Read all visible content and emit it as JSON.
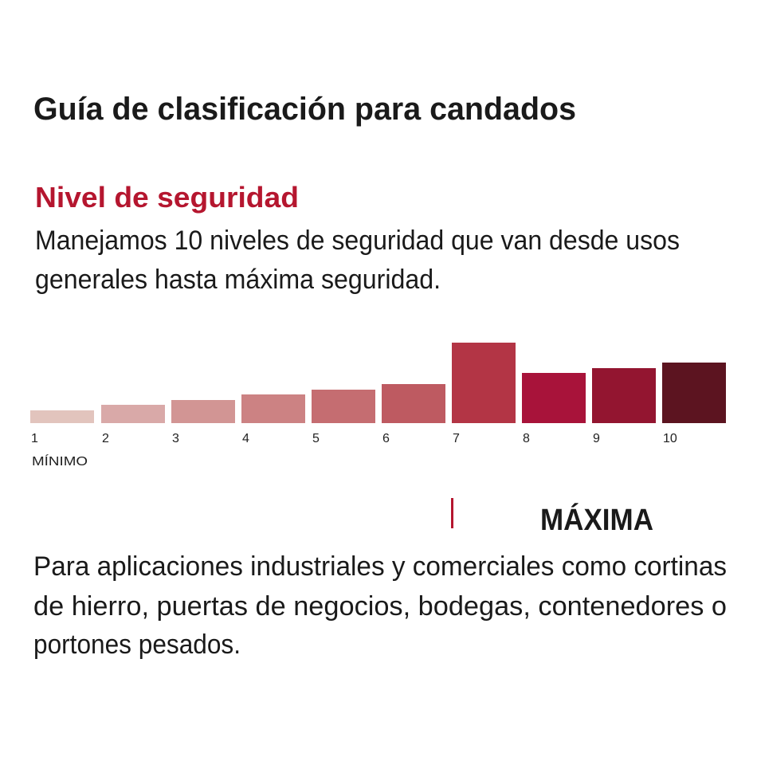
{
  "header": {
    "title": "Guía de clasificación para candados"
  },
  "section": {
    "heading": "Nivel de seguridad",
    "description": [
      "Manejamos 10 niveles de seguridad que van desde usos",
      "generales hasta máxima seguridad."
    ]
  },
  "scale": {
    "levels": [
      "1",
      "2",
      "3",
      "4",
      "5",
      "6",
      "7",
      "8",
      "9",
      "10"
    ],
    "min_label": "MÍNIMO"
  },
  "level_detail": {
    "label": "MÁXIMA",
    "description": [
      "Para aplicaciones industriales y comerciales como cortinas",
      "de hierro, puertas de negocios, bodegas, contenedores o",
      "portones pesados."
    ]
  }
}
